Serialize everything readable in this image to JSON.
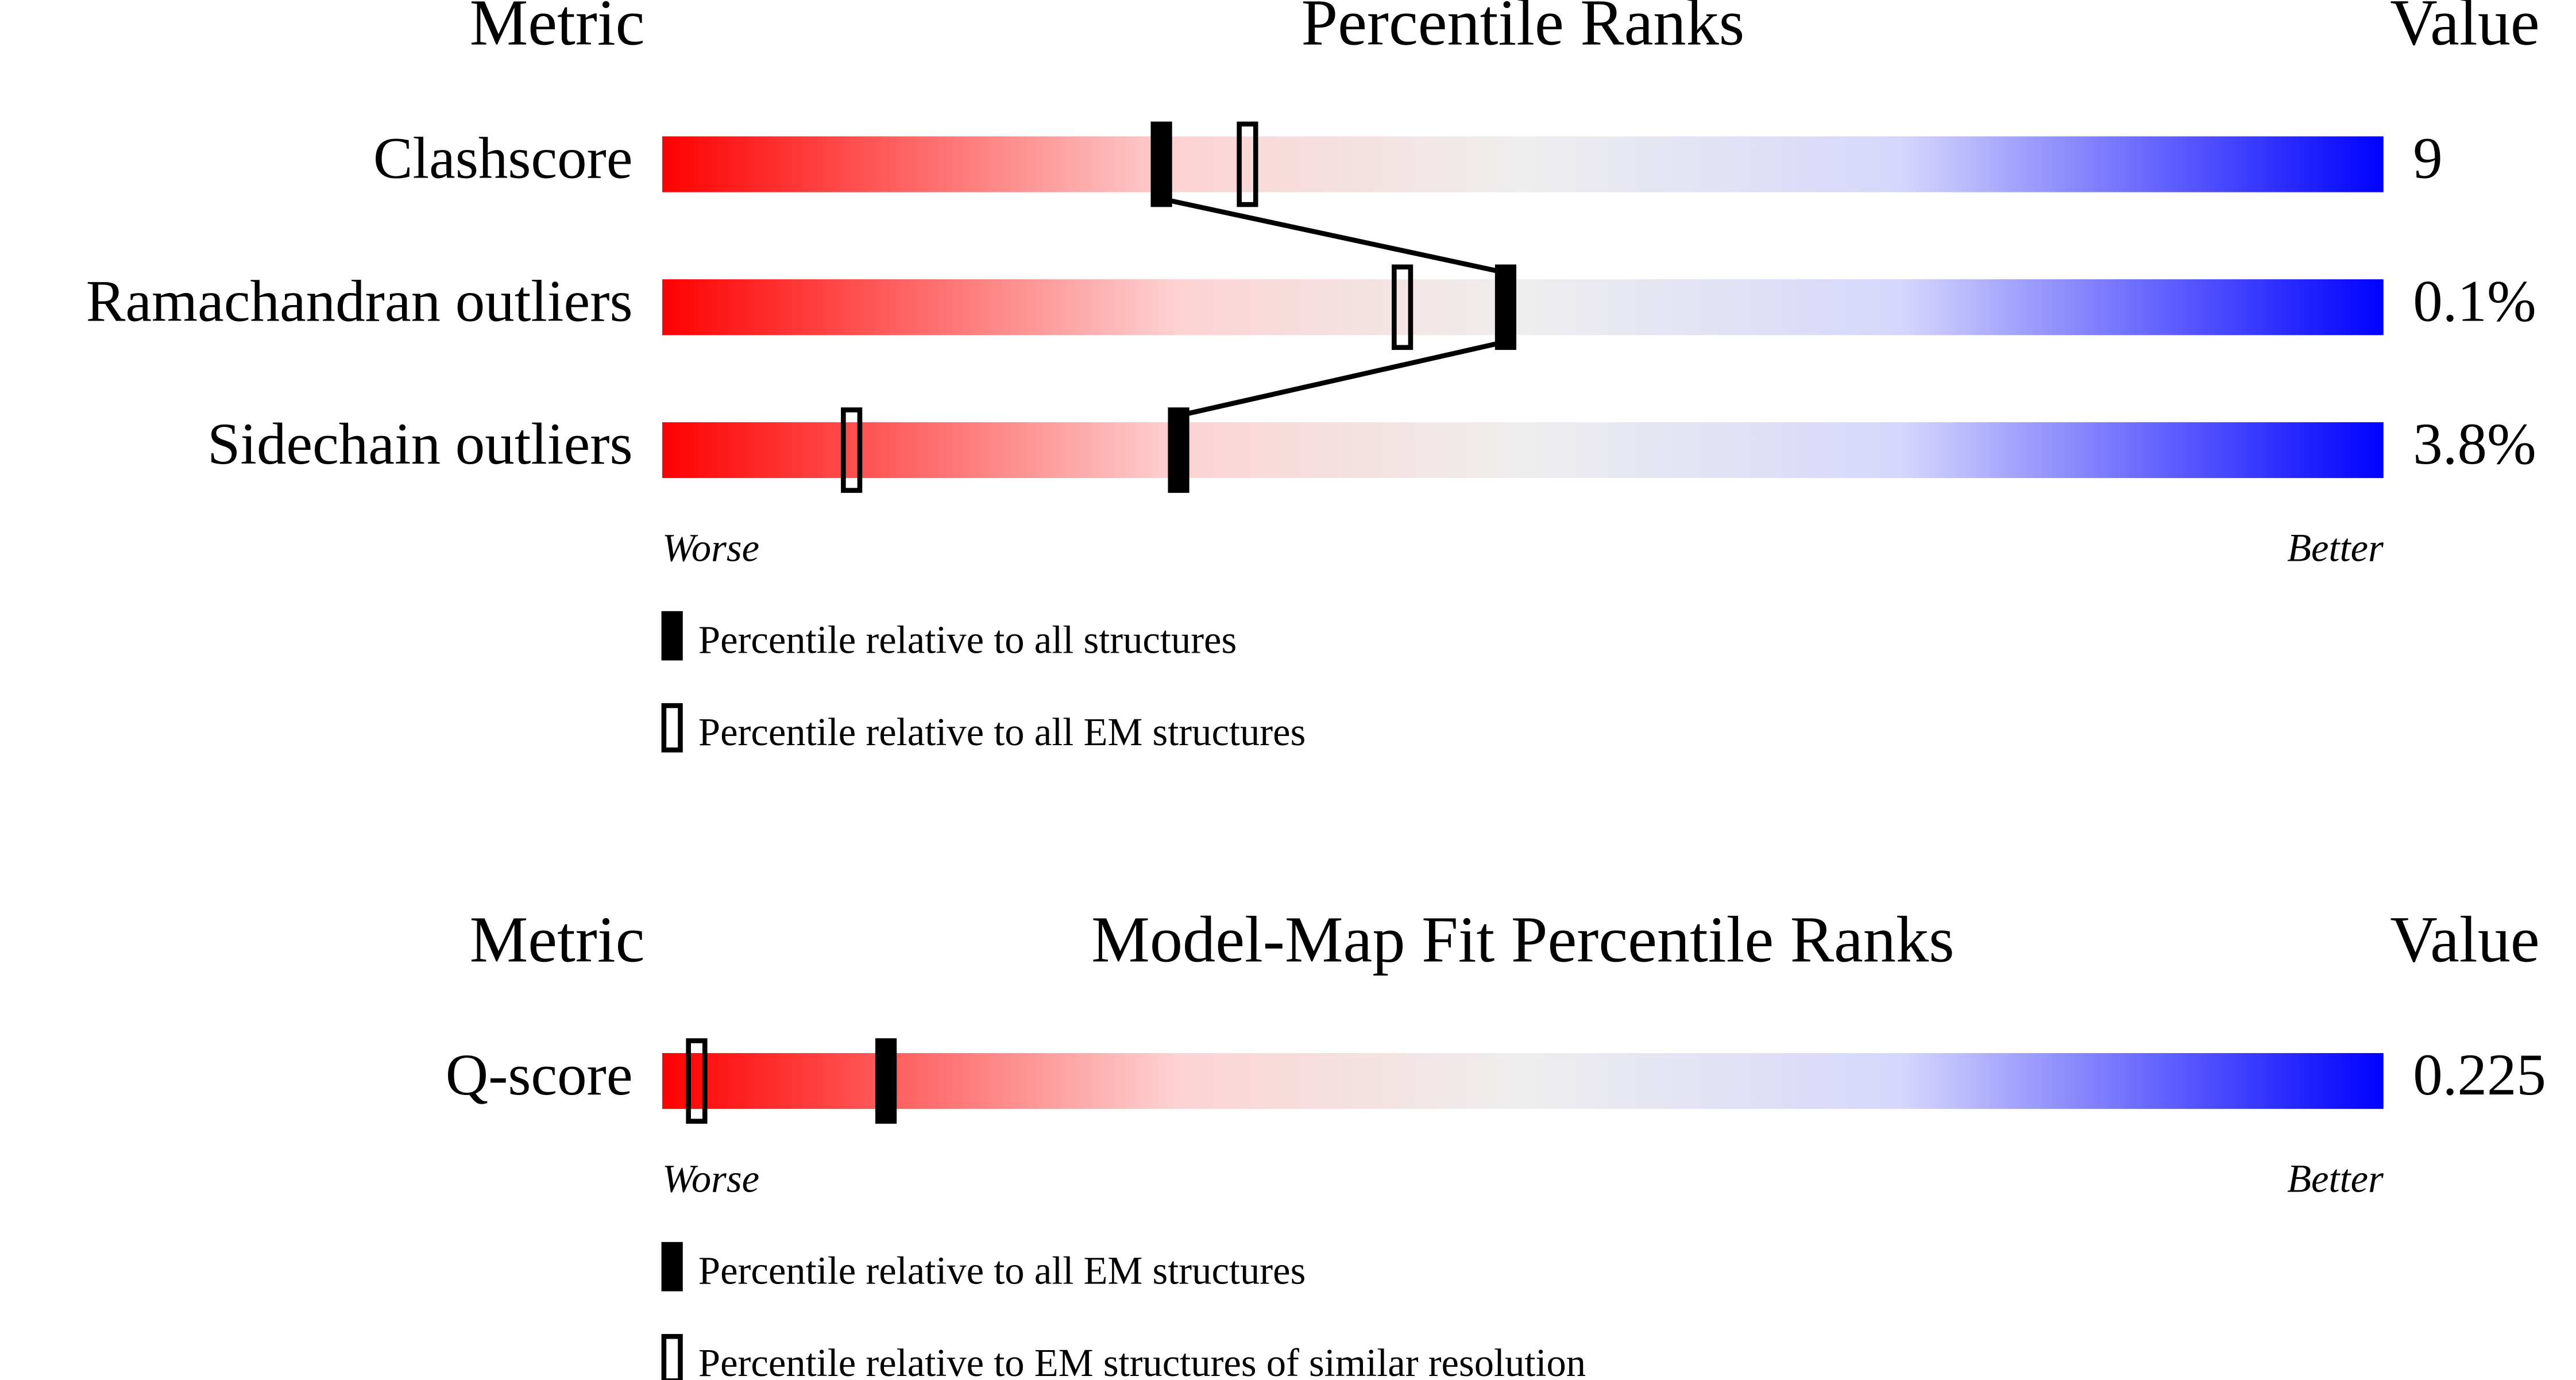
{
  "chart_data": [
    {
      "type": "percentile-slider",
      "metric_header": "Metric",
      "title": "Percentile Ranks",
      "value_header": "Value",
      "categories": [
        "Clashscore",
        "Ramachandran outliers",
        "Sidechain outliers"
      ],
      "metric_values": [
        "9",
        "0.1%",
        "3.8%"
      ],
      "series": [
        {
          "name": "Percentile relative to all structures",
          "marker": "filled",
          "color": "#000000",
          "values": [
            29,
            49,
            30
          ]
        },
        {
          "name": "Percentile relative to all EM structures",
          "marker": "open",
          "color": "#000000",
          "values": [
            34,
            43,
            11
          ]
        }
      ],
      "xlim": [
        0,
        100
      ],
      "worse_label": "Worse",
      "better_label": "Better"
    },
    {
      "type": "percentile-slider",
      "metric_header": "Metric",
      "title": "Model-Map Fit Percentile Ranks",
      "value_header": "Value",
      "categories": [
        "Q-score"
      ],
      "metric_values": [
        "0.225"
      ],
      "series": [
        {
          "name": "Percentile relative to all EM structures",
          "marker": "filled",
          "color": "#000000",
          "values": [
            13
          ]
        },
        {
          "name": "Percentile relative to EM structures of similar resolution",
          "marker": "open",
          "color": "#000000",
          "values": [
            2
          ]
        }
      ],
      "xlim": [
        0,
        100
      ],
      "worse_label": "Worse",
      "better_label": "Better"
    }
  ]
}
